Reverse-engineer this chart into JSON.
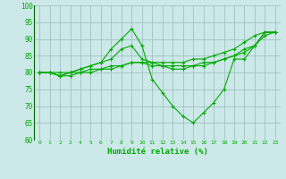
{
  "xlabel": "Humidité relative (%)",
  "xlim": [
    -0.5,
    23.5
  ],
  "ylim": [
    60,
    100
  ],
  "yticks": [
    60,
    65,
    70,
    75,
    80,
    85,
    90,
    95,
    100
  ],
  "xticks": [
    0,
    1,
    2,
    3,
    4,
    5,
    6,
    7,
    8,
    9,
    10,
    11,
    12,
    13,
    14,
    15,
    16,
    17,
    18,
    19,
    20,
    21,
    22,
    23
  ],
  "bg_color": "#cce8e8",
  "line_color": "#00aa00",
  "grid_color": "#99bbbb",
  "lines": [
    [
      80,
      80,
      80,
      80,
      80,
      81,
      81,
      82,
      82,
      83,
      83,
      83,
      83,
      83,
      83,
      84,
      84,
      85,
      86,
      87,
      89,
      91,
      92,
      92
    ],
    [
      80,
      80,
      79,
      79,
      80,
      80,
      81,
      81,
      82,
      83,
      83,
      82,
      82,
      82,
      82,
      82,
      83,
      83,
      84,
      85,
      87,
      88,
      91,
      92
    ],
    [
      80,
      80,
      79,
      80,
      81,
      82,
      83,
      84,
      87,
      88,
      84,
      83,
      82,
      81,
      81,
      82,
      82,
      83,
      84,
      85,
      86,
      88,
      92,
      92
    ],
    [
      80,
      80,
      79,
      80,
      81,
      82,
      83,
      87,
      90,
      93,
      88,
      78,
      74,
      70,
      67,
      65,
      68,
      71,
      75,
      84,
      84,
      88,
      92,
      92
    ]
  ]
}
